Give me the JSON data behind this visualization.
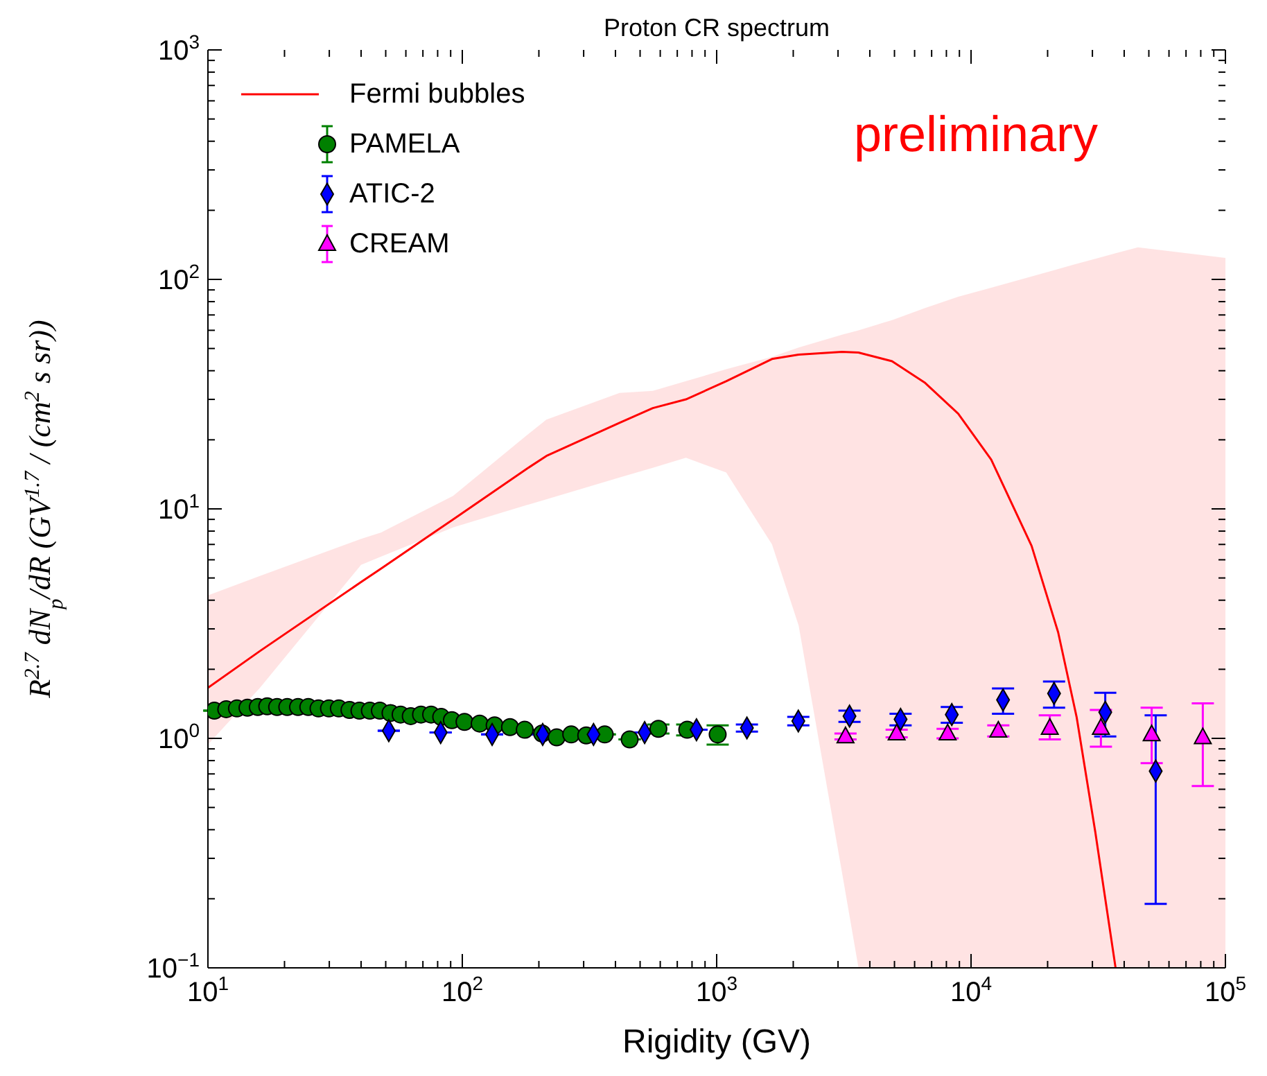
{
  "chart_data": {
    "type": "scatter",
    "title": "Proton CR spectrum",
    "xlabel": "Rigidity (GV)",
    "ylabel": "R$^{2.7}$ dN$_{p}$/dR  (GV$^{1.7}$ / (cm$^{2}$ s sr))",
    "annotations": [
      "preliminary"
    ],
    "log": "xy",
    "grid": false,
    "legend": "top left",
    "xlim": [
      10,
      100000
    ],
    "ylim": [
      0.1,
      1000
    ],
    "xticks": [
      {
        "value": 10,
        "label": "10$^{1}$"
      },
      {
        "value": 20,
        "label": null
      },
      {
        "value": 30,
        "label": null
      },
      {
        "value": 40,
        "label": null
      },
      {
        "value": 50,
        "label": null
      },
      {
        "value": 60,
        "label": null
      },
      {
        "value": 70,
        "label": null
      },
      {
        "value": 80,
        "label": null
      },
      {
        "value": 90,
        "label": null
      },
      {
        "value": 100,
        "label": "10$^{2}$"
      },
      {
        "value": 200,
        "label": null
      },
      {
        "value": 300,
        "label": null
      },
      {
        "value": 400,
        "label": null
      },
      {
        "value": 500,
        "label": null
      },
      {
        "value": 600,
        "label": null
      },
      {
        "value": 700,
        "label": null
      },
      {
        "value": 800,
        "label": null
      },
      {
        "value": 900,
        "label": null
      },
      {
        "value": 1000,
        "label": "10$^{3}$"
      },
      {
        "value": 2000,
        "label": null
      },
      {
        "value": 3000,
        "label": null
      },
      {
        "value": 4000,
        "label": null
      },
      {
        "value": 5000,
        "label": null
      },
      {
        "value": 6000,
        "label": null
      },
      {
        "value": 7000,
        "label": null
      },
      {
        "value": 8000,
        "label": null
      },
      {
        "value": 9000,
        "label": null
      },
      {
        "value": 10000,
        "label": "10$^{4}$"
      },
      {
        "value": 20000,
        "label": null
      },
      {
        "value": 30000,
        "label": null
      },
      {
        "value": 40000,
        "label": null
      },
      {
        "value": 50000,
        "label": null
      },
      {
        "value": 60000,
        "label": null
      },
      {
        "value": 70000,
        "label": null
      },
      {
        "value": 80000,
        "label": null
      },
      {
        "value": 90000,
        "label": null
      },
      {
        "value": 100000,
        "label": "10$^{5}$"
      }
    ],
    "yticks": [
      {
        "value": 0.1,
        "label": "10$^{−1}$"
      },
      {
        "value": 0.2,
        "label": null
      },
      {
        "value": 0.3,
        "label": null
      },
      {
        "value": 0.4,
        "label": null
      },
      {
        "value": 0.5,
        "label": null
      },
      {
        "value": 0.6,
        "label": null
      },
      {
        "value": 0.7,
        "label": null
      },
      {
        "value": 0.8,
        "label": null
      },
      {
        "value": 0.9,
        "label": null
      },
      {
        "value": 1,
        "label": "10$^{0}$"
      },
      {
        "value": 2,
        "label": null
      },
      {
        "value": 3,
        "label": null
      },
      {
        "value": 4,
        "label": null
      },
      {
        "value": 5,
        "label": null
      },
      {
        "value": 6,
        "label": null
      },
      {
        "value": 7,
        "label": null
      },
      {
        "value": 8,
        "label": null
      },
      {
        "value": 9,
        "label": null
      },
      {
        "value": 10,
        "label": "10$^{1}$"
      },
      {
        "value": 20,
        "label": null
      },
      {
        "value": 30,
        "label": null
      },
      {
        "value": 40,
        "label": null
      },
      {
        "value": 50,
        "label": null
      },
      {
        "value": 60,
        "label": null
      },
      {
        "value": 70,
        "label": null
      },
      {
        "value": 80,
        "label": null
      },
      {
        "value": 90,
        "label": null
      },
      {
        "value": 100,
        "label": "10$^{2}$"
      },
      {
        "value": 200,
        "label": null
      },
      {
        "value": 300,
        "label": null
      },
      {
        "value": 400,
        "label": null
      },
      {
        "value": 500,
        "label": null
      },
      {
        "value": 600,
        "label": null
      },
      {
        "value": 700,
        "label": null
      },
      {
        "value": 800,
        "label": null
      },
      {
        "value": 900,
        "label": null
      },
      {
        "value": 1000,
        "label": "10$^{3}$"
      }
    ],
    "series": [
      {
        "name": "Fermi bubbles",
        "type": "line",
        "color": "#ff0000",
        "marker": "none",
        "line_style": "solid",
        "x": [
          10,
          16,
          40,
          48,
          92,
          180,
          214,
          415,
          561,
          757,
          1090,
          1650,
          2100,
          3110,
          3610,
          4890,
          6600,
          8900,
          12000,
          17300,
          22000,
          26000,
          30800,
          37000,
          45300,
          100000
        ],
        "values": [
          1.66,
          2.4,
          4.8,
          5.5,
          9,
          15,
          17,
          23.7,
          27.5,
          30,
          36,
          45,
          47,
          48.3,
          48,
          44,
          35.4,
          26,
          16.4,
          6.9,
          2.9,
          1.24,
          0.39,
          0.1,
          null,
          null
        ],
        "lower": [
          0.94,
          1.66,
          5.7,
          6.2,
          8.3,
          10.4,
          11,
          13.7,
          15.1,
          16.7,
          14.4,
          7,
          3.1,
          0.26,
          0.1,
          0.1,
          0.1,
          0.1,
          0.1,
          0.1,
          0.1,
          0.1,
          0.1,
          0.1,
          0.1,
          0.1
        ],
        "upper": [
          4.2,
          5.1,
          7.4,
          7.9,
          11.4,
          21,
          24.5,
          32,
          32.7,
          36,
          40.6,
          46,
          50.5,
          57.4,
          60,
          66.5,
          75,
          84,
          92,
          103,
          111,
          117,
          123,
          130,
          138,
          124
        ]
      },
      {
        "name": "PAMELA",
        "color": "#008000",
        "marker": "circle",
        "x": [
          10.6,
          11.8,
          13,
          14.3,
          15.7,
          17.1,
          18.7,
          20.5,
          22.6,
          24.8,
          27.2,
          29.9,
          32.7,
          36,
          39.4,
          43.3,
          47.4,
          52.2,
          57.2,
          62.7,
          68.8,
          75.4,
          82.6,
          91,
          102,
          117,
          134,
          154,
          176,
          206,
          235,
          268,
          307,
          363,
          455,
          590,
          766,
          1009
        ],
        "values": [
          1.32,
          1.34,
          1.35,
          1.36,
          1.37,
          1.38,
          1.37,
          1.37,
          1.37,
          1.37,
          1.35,
          1.35,
          1.35,
          1.33,
          1.32,
          1.32,
          1.32,
          1.29,
          1.27,
          1.25,
          1.27,
          1.27,
          1.24,
          1.2,
          1.18,
          1.16,
          1.14,
          1.12,
          1.09,
          1.05,
          1.01,
          1.04,
          1.03,
          1.04,
          0.99,
          1.1,
          1.09,
          1.04
        ],
        "errors": [
          null,
          null,
          null,
          null,
          null,
          null,
          null,
          null,
          null,
          null,
          null,
          null,
          null,
          null,
          null,
          null,
          null,
          null,
          null,
          null,
          null,
          null,
          null,
          null,
          null,
          null,
          null,
          null,
          null,
          null,
          null,
          null,
          null,
          null,
          null,
          0.05,
          0.06,
          0.1
        ]
      },
      {
        "name": "ATIC-2",
        "color": "#0000ff",
        "marker": "diamond",
        "x": [
          51.4,
          82.2,
          131,
          207,
          328,
          521,
          833,
          1315,
          2094,
          3328,
          5284,
          8400,
          13360,
          21200,
          33700,
          53200
        ],
        "values": [
          1.08,
          1.06,
          1.04,
          1.04,
          1.04,
          1.06,
          1.09,
          1.11,
          1.19,
          1.25,
          1.21,
          1.27,
          1.47,
          1.57,
          1.3,
          0.72
        ],
        "errors": [
          null,
          null,
          null,
          null,
          null,
          null,
          null,
          0.04,
          0.05,
          0.07,
          0.07,
          0.1,
          [
            1.28,
            1.65
          ],
          [
            1.36,
            1.77
          ],
          [
            1.02,
            1.58
          ],
          [
            0.19,
            1.26
          ]
        ]
      },
      {
        "name": "CREAM",
        "color": "#ff00ff",
        "marker": "triangle",
        "x": [
          3210,
          5100,
          8090,
          12800,
          20400,
          32400,
          51300,
          81500
        ],
        "values": [
          1.02,
          1.05,
          1.05,
          1.08,
          1.11,
          1.11,
          1.04,
          1.01
        ],
        "errors": [
          0.03,
          0.04,
          0.05,
          0.06,
          [
            0.99,
            1.26
          ],
          [
            0.92,
            1.33
          ],
          [
            0.78,
            1.36
          ],
          [
            0.62,
            1.42
          ]
        ]
      }
    ]
  }
}
